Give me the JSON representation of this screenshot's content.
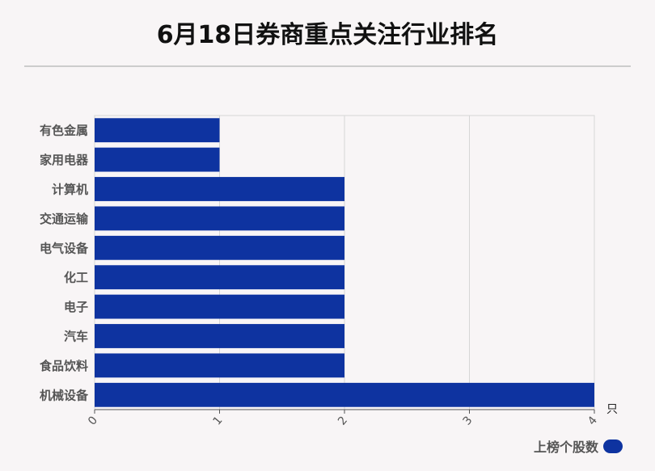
{
  "title": "6月18日券商重点关注行业排名",
  "chart_data": {
    "type": "bar",
    "orientation": "horizontal",
    "title": "6月18日券商重点关注行业排名",
    "categories": [
      "有色金属",
      "家用电器",
      "计算机",
      "交通运输",
      "电气设备",
      "化工",
      "电子",
      "汽车",
      "食品饮料",
      "机械设备"
    ],
    "series": [
      {
        "name": "上榜个股数",
        "values": [
          1,
          1,
          2,
          2,
          2,
          2,
          2,
          2,
          2,
          4
        ]
      }
    ],
    "xlim": [
      0,
      4
    ],
    "x_ticks": [
      "0",
      "1",
      "2",
      "3",
      "4"
    ],
    "x_unit": "只",
    "grid": true,
    "legend": "bottom-right",
    "bar_color": "#0e33a0"
  },
  "legend": {
    "label": "上榜个股数",
    "color": "#0e33a0"
  }
}
